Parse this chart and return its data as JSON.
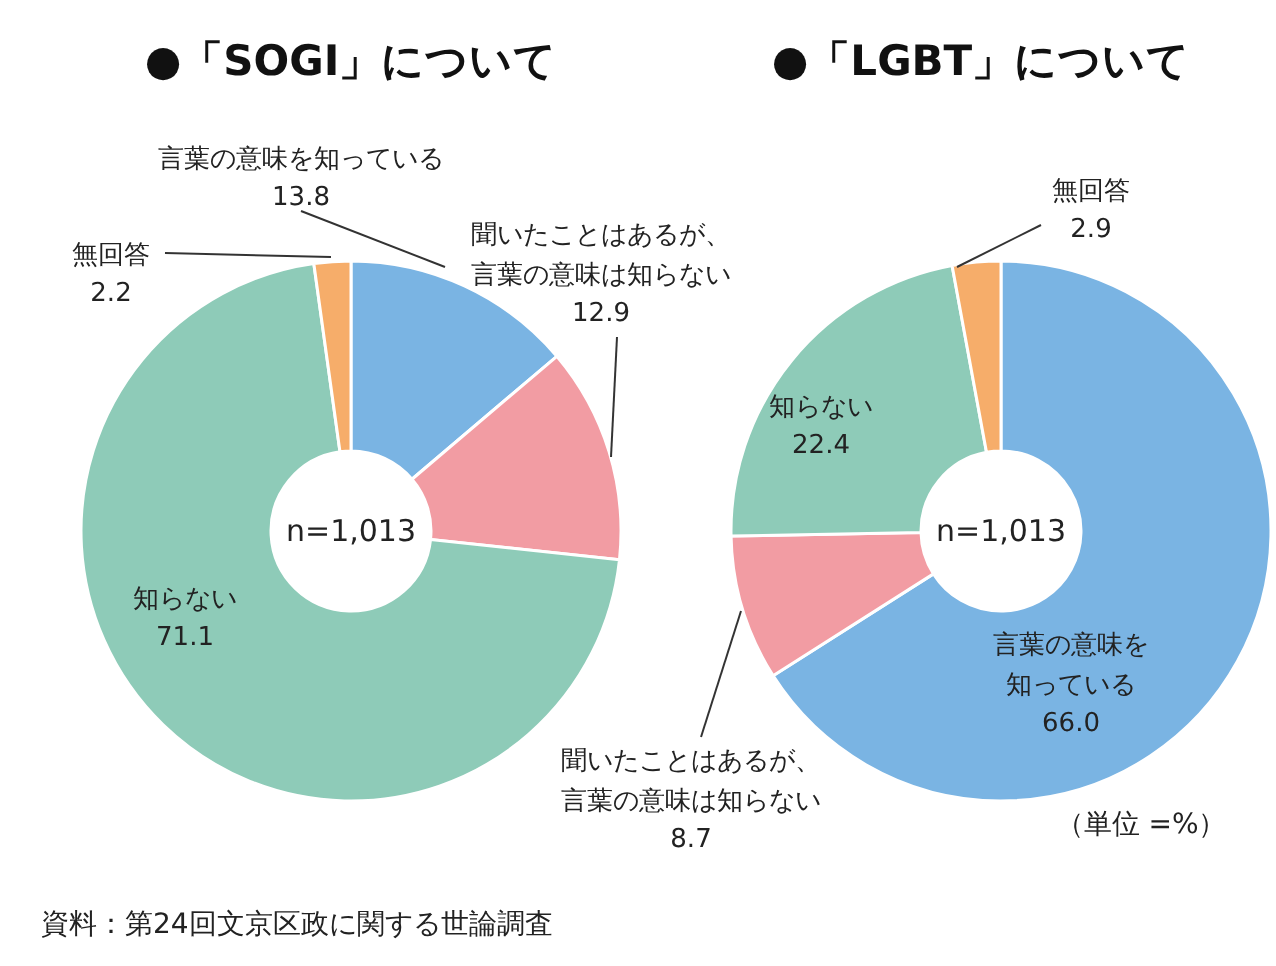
{
  "chart_data": [
    {
      "type": "donut",
      "title": "●「SOGI」について",
      "categories": [
        "言葉の意味を知っている",
        "聞いたことはあるが、言葉の意味は知らない",
        "知らない",
        "無回答"
      ],
      "values": [
        13.8,
        12.9,
        71.1,
        2.2
      ],
      "value_labels": [
        "13.8",
        "12.9",
        "71.1",
        "2.2"
      ],
      "colors": [
        "#7ab4e3",
        "#f29ca3",
        "#8ecbb8",
        "#f6ad6a"
      ],
      "annotations": [
        "n=1,013",
        "資料：第24回文京区政に関する世論調査"
      ]
    },
    {
      "type": "donut",
      "title": "●「LGBT」について",
      "categories": [
        "言葉の意味を知っている",
        "聞いたことはあるが、言葉の意味は知らない",
        "知らない",
        "無回答"
      ],
      "values": [
        66.0,
        8.7,
        22.4,
        2.9
      ],
      "value_labels": [
        "66.0",
        "8.7",
        "22.4",
        "2.9"
      ],
      "colors": [
        "#7ab4e3",
        "#f29ca3",
        "#8ecbb8",
        "#f6ad6a"
      ],
      "annotations": [
        "n=1,013",
        "（単位 =%）"
      ]
    }
  ]
}
